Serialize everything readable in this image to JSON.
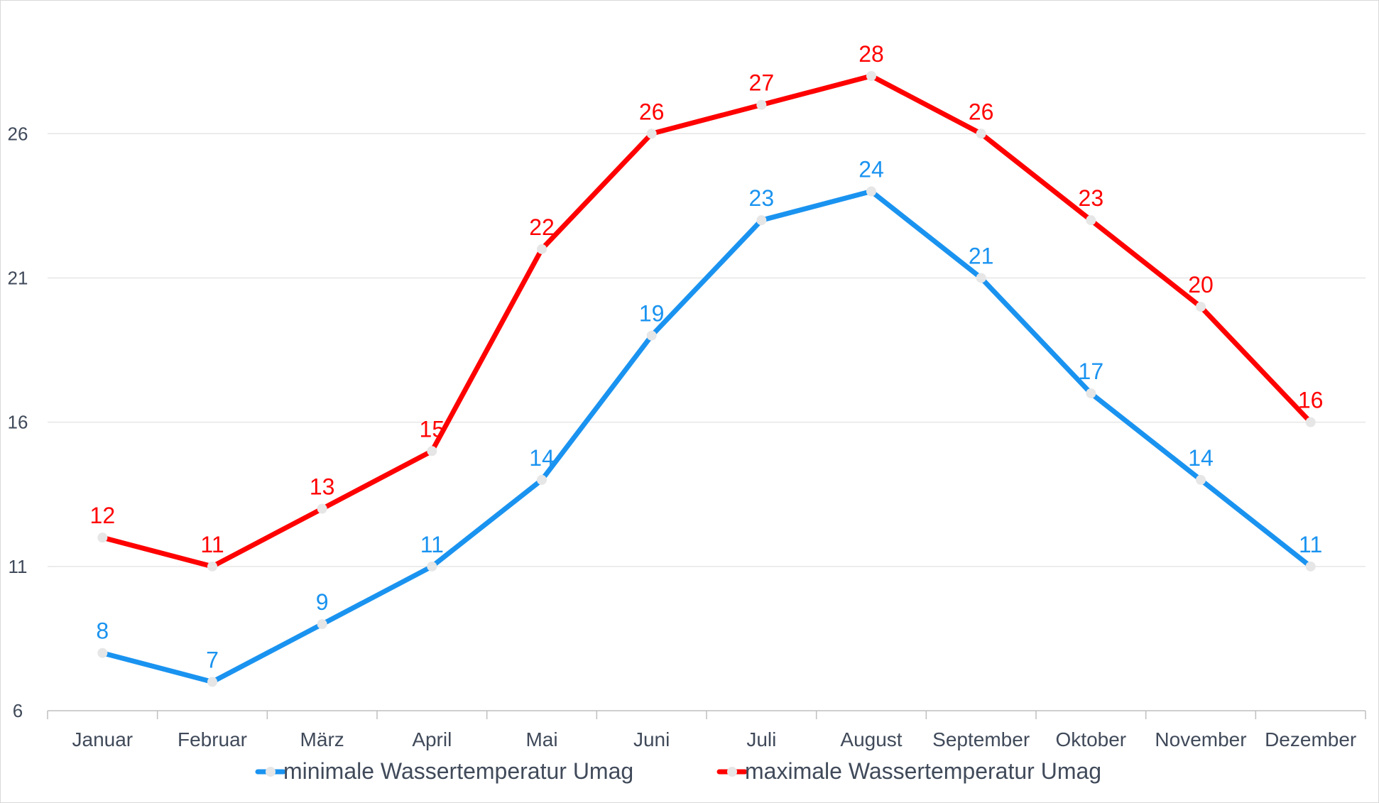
{
  "chart_data": {
    "type": "line",
    "categories": [
      "Januar",
      "Februar",
      "März",
      "April",
      "Mai",
      "Juni",
      "Juli",
      "August",
      "September",
      "Oktober",
      "November",
      "Dezember"
    ],
    "series": [
      {
        "name": "minimale Wassertemperatur Umag",
        "color": "#1a93f0",
        "values": [
          8,
          7,
          9,
          11,
          14,
          19,
          23,
          24,
          21,
          17,
          14,
          11
        ]
      },
      {
        "name": "maximale Wassertemperatur Umag",
        "color": "#ff0000",
        "values": [
          12,
          11,
          13,
          15,
          22,
          26,
          27,
          28,
          26,
          23,
          20,
          16
        ]
      }
    ],
    "yticks": [
      6,
      11,
      16,
      21,
      26
    ],
    "ylim": [
      6,
      28
    ],
    "grid": true,
    "legend": "bottom",
    "marker_color": "#e6e6e6",
    "grid_color": "#e6e6e6",
    "axis_color": "#bfbfbf"
  }
}
